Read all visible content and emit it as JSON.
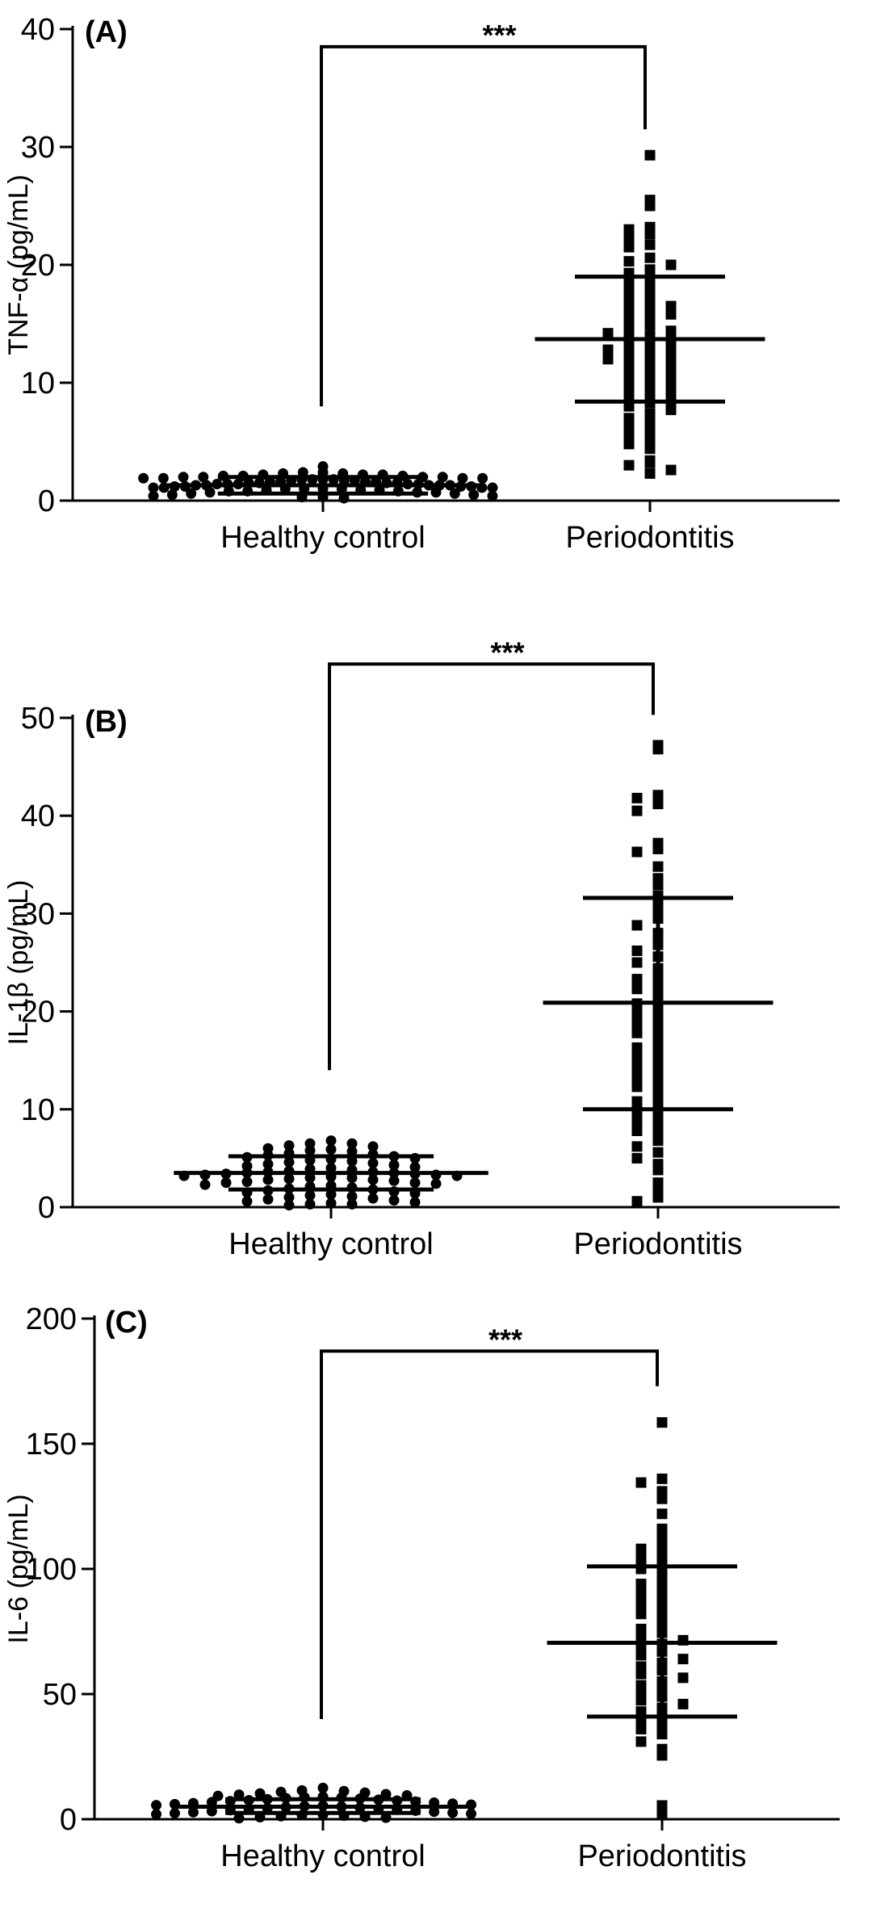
{
  "chart_data": [
    {
      "type": "scatter",
      "panel_label": "(A)",
      "ylabel": "TNF-α (pg/mL)",
      "categories": [
        "Healthy control",
        "Periodontitis"
      ],
      "ylim": [
        0,
        40
      ],
      "yticks": [
        0,
        10,
        20,
        30,
        40
      ],
      "significance": "***",
      "bracket_bottoms": [
        8,
        31.5
      ],
      "bracket_top": 38.5,
      "series": [
        {
          "category": "Healthy control",
          "marker": "circle",
          "mean": 1.3,
          "sd_low": 0.6,
          "sd_high": 2.0,
          "values": [
            2.9,
            2.4,
            2.4,
            2.3,
            2.3,
            2.2,
            2.2,
            2.2,
            2.1,
            2.1,
            2.1,
            2.0,
            2.0,
            2.0,
            2.0,
            1.9,
            1.9,
            1.9,
            1.9,
            1.8,
            1.8,
            1.8,
            1.8,
            1.7,
            1.7,
            1.7,
            1.6,
            1.6,
            1.6,
            1.6,
            1.5,
            1.5,
            1.5,
            1.5,
            1.4,
            1.4,
            1.4,
            1.4,
            1.4,
            1.3,
            1.3,
            1.3,
            1.3,
            1.3,
            1.2,
            1.2,
            1.2,
            1.2,
            1.1,
            1.1,
            1.1,
            1.1,
            1.0,
            1.0,
            1.0,
            1.0,
            0.9,
            0.9,
            0.9,
            0.8,
            0.8,
            0.8,
            0.7,
            0.7,
            0.7,
            0.6,
            0.6,
            0.5,
            0.5,
            0.4,
            0.4,
            0.3,
            0.3,
            0.2
          ]
        },
        {
          "category": "Periodontitis",
          "marker": "square",
          "mean": 13.7,
          "sd_low": 8.4,
          "sd_high": 19.0,
          "values": [
            29.3,
            25.5,
            25.0,
            23.2,
            23.0,
            22.6,
            22.3,
            21.7,
            21.5,
            20.6,
            20.3,
            20.0,
            19.6,
            19.3,
            19.0,
            18.6,
            18.3,
            17.9,
            17.6,
            17.4,
            17.0,
            16.8,
            16.5,
            16.3,
            16.0,
            15.8,
            15.5,
            15.2,
            14.9,
            14.6,
            14.4,
            14.2,
            14.0,
            13.8,
            13.6,
            13.4,
            13.2,
            13.0,
            12.8,
            12.6,
            12.4,
            12.2,
            12.0,
            11.8,
            11.6,
            11.4,
            11.1,
            10.9,
            10.6,
            10.4,
            10.2,
            10.0,
            9.7,
            9.5,
            9.2,
            9.0,
            8.8,
            8.5,
            8.3,
            8.0,
            7.7,
            7.4,
            7.0,
            6.7,
            6.3,
            6.0,
            5.6,
            5.2,
            4.8,
            4.4,
            3.4,
            3.2,
            3.0,
            2.6,
            2.3
          ]
        }
      ]
    },
    {
      "type": "scatter",
      "panel_label": "(B)",
      "ylabel": "IL-1β (pg/mL)",
      "categories": [
        "Healthy control",
        "Periodontitis"
      ],
      "ylim": [
        0,
        50
      ],
      "yticks": [
        0,
        10,
        20,
        30,
        40,
        50
      ],
      "significance": "***",
      "bracket_bottoms": [
        14,
        50.3
      ],
      "bracket_top": 55.5,
      "series": [
        {
          "category": "Healthy control",
          "marker": "circle",
          "mean": 3.5,
          "sd_low": 1.8,
          "sd_high": 5.2,
          "values": [
            6.8,
            6.5,
            6.5,
            6.3,
            6.2,
            6.0,
            5.9,
            5.8,
            5.7,
            5.5,
            5.4,
            5.3,
            5.2,
            5.1,
            5.0,
            4.9,
            4.8,
            4.7,
            4.6,
            4.5,
            4.4,
            4.3,
            4.2,
            4.1,
            4.0,
            3.9,
            3.8,
            3.7,
            3.6,
            3.6,
            3.5,
            3.5,
            3.4,
            3.4,
            3.3,
            3.3,
            3.2,
            3.2,
            3.1,
            3.0,
            3.0,
            2.9,
            2.8,
            2.8,
            2.7,
            2.6,
            2.5,
            2.5,
            2.4,
            2.3,
            2.2,
            2.1,
            2.0,
            1.9,
            1.8,
            1.7,
            1.6,
            1.5,
            1.4,
            1.3,
            1.2,
            1.1,
            1.0,
            0.9,
            0.8,
            0.7,
            0.6,
            0.5,
            0.4,
            0.3,
            0.3,
            0.2
          ]
        },
        {
          "category": "Periodontitis",
          "marker": "square",
          "mean": 20.9,
          "sd_low": 10.0,
          "sd_high": 31.6,
          "values": [
            47.2,
            46.8,
            42.1,
            41.8,
            41.2,
            40.5,
            37.2,
            36.6,
            36.3,
            34.8,
            33.6,
            32.9,
            31.8,
            31.0,
            30.2,
            29.5,
            28.8,
            28.0,
            27.4,
            26.8,
            26.2,
            25.6,
            25.0,
            24.4,
            23.8,
            23.3,
            22.8,
            22.3,
            21.8,
            21.3,
            20.8,
            20.3,
            19.8,
            19.3,
            18.8,
            18.3,
            17.8,
            17.3,
            16.8,
            16.3,
            15.8,
            15.3,
            14.8,
            14.3,
            13.8,
            13.3,
            12.8,
            12.3,
            11.8,
            11.3,
            10.8,
            10.3,
            9.8,
            9.3,
            8.8,
            8.3,
            7.8,
            7.3,
            6.8,
            6.2,
            5.6,
            5.0,
            4.4,
            3.8,
            2.5,
            1.8,
            1.0,
            0.6
          ]
        }
      ]
    },
    {
      "type": "scatter",
      "panel_label": "(C)",
      "ylabel": "IL-6 (pg/mL)",
      "categories": [
        "Healthy control",
        "Periodontitis"
      ],
      "ylim": [
        0,
        200
      ],
      "yticks": [
        0,
        50,
        100,
        150,
        200
      ],
      "significance": "***",
      "bracket_bottoms": [
        40,
        173
      ],
      "bracket_top": 187,
      "series": [
        {
          "category": "Healthy control",
          "marker": "circle",
          "mean": 5.0,
          "sd_low": 2.5,
          "sd_high": 8.0,
          "values": [
            12.5,
            11.5,
            11.2,
            10.9,
            10.6,
            10.3,
            10.0,
            9.8,
            9.5,
            9.3,
            9.0,
            8.8,
            8.6,
            8.4,
            8.2,
            8.0,
            7.8,
            7.6,
            7.4,
            7.2,
            7.0,
            6.8,
            6.6,
            6.4,
            6.2,
            6.0,
            5.8,
            5.6,
            5.4,
            5.2,
            5.0,
            4.8,
            4.6,
            4.4,
            4.2,
            4.0,
            3.8,
            3.6,
            3.4,
            3.2,
            3.0,
            2.8,
            2.6,
            2.4,
            2.2,
            2.0,
            1.8,
            1.6,
            1.4,
            1.2,
            1.0,
            0.8,
            0.6,
            0.4
          ]
        },
        {
          "category": "Periodontitis",
          "marker": "square",
          "mean": 70.5,
          "sd_low": 41.0,
          "sd_high": 101.0,
          "values": [
            158.5,
            136.0,
            134.5,
            131.0,
            128.0,
            122.0,
            116.0,
            112.0,
            110.0,
            108.0,
            106.0,
            104.0,
            102.0,
            100.0,
            98.0,
            96.0,
            94.0,
            92.0,
            90.0,
            88.0,
            86.0,
            84.0,
            82.0,
            80.0,
            78.0,
            76.0,
            74.5,
            73.0,
            71.5,
            70.0,
            68.5,
            67.0,
            65.5,
            64.0,
            62.5,
            61.0,
            59.5,
            58.0,
            56.5,
            55.0,
            53.5,
            52.0,
            50.5,
            49.0,
            47.5,
            46.0,
            44.5,
            43.0,
            41.5,
            40.0,
            38.0,
            36.0,
            34.0,
            31.0,
            28.0,
            25.5,
            5.5,
            2.0
          ]
        }
      ]
    }
  ]
}
